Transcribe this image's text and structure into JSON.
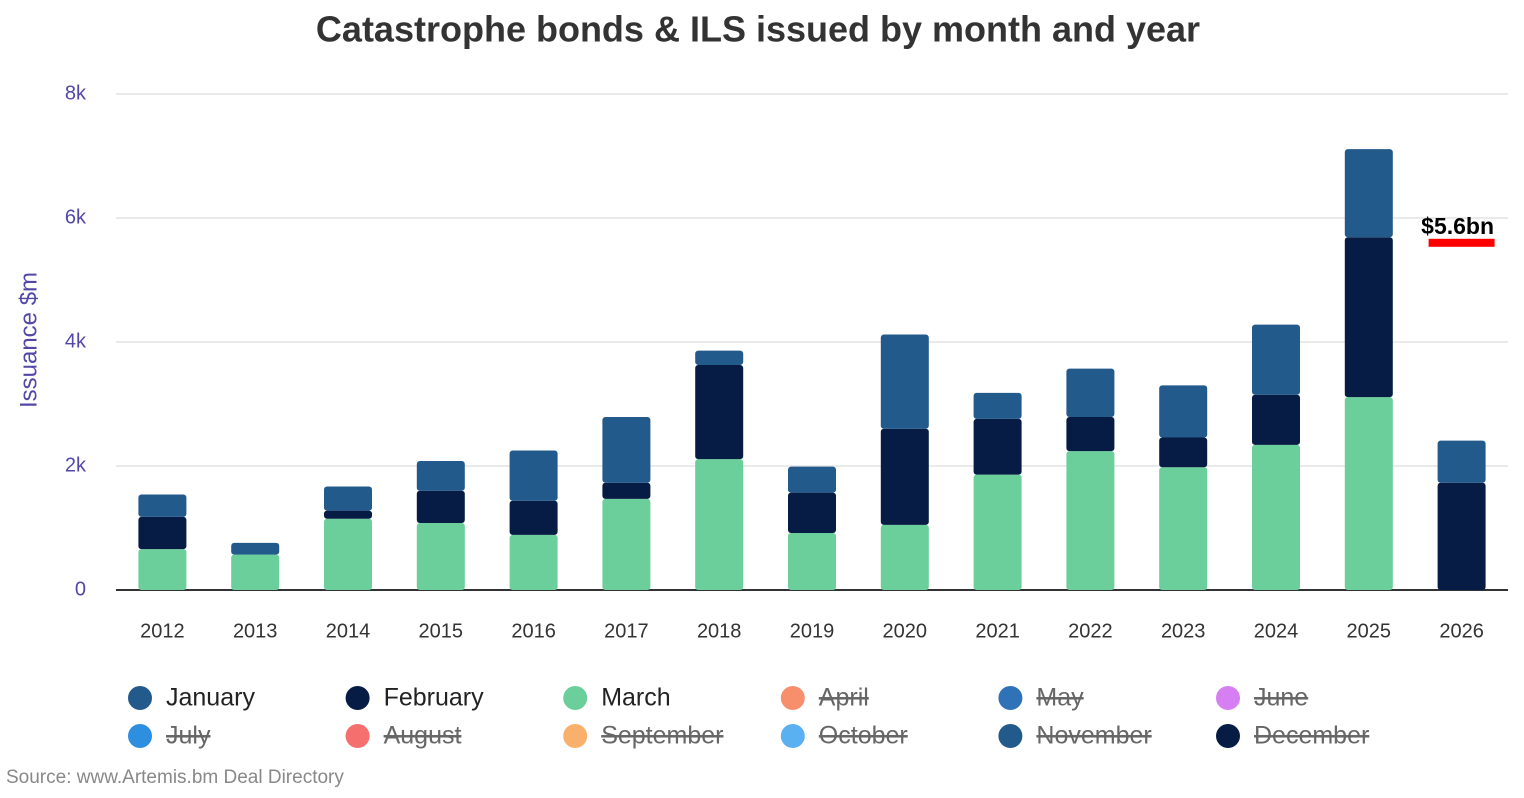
{
  "chart_data": {
    "type": "stacked_bar",
    "title": "Catastrophe bonds & ILS issued by month and year",
    "y_label": "Issuance $m",
    "source": "Source: www.Artemis.bm Deal Directory",
    "categories": [
      "2012",
      "2013",
      "2014",
      "2015",
      "2016",
      "2017",
      "2018",
      "2019",
      "2020",
      "2021",
      "2022",
      "2023",
      "2024",
      "2025",
      "2026"
    ],
    "ylim": [
      0,
      8000
    ],
    "yticks": [
      0,
      {
        "value": 2000,
        "label": "2k"
      },
      {
        "value": 4000,
        "label": "4k"
      },
      {
        "value": 6000,
        "label": "6k"
      },
      {
        "value": 8000,
        "label": "8k"
      }
    ],
    "grid": true,
    "stack_order": [
      "March",
      "February",
      "January"
    ],
    "series": [
      {
        "name": "January",
        "color": "#235a8c",
        "visible": true,
        "values": [
          360,
          190,
          390,
          480,
          810,
          1060,
          230,
          420,
          1520,
          420,
          780,
          840,
          1130,
          1420,
          680
        ]
      },
      {
        "name": "February",
        "color": "#061c45",
        "visible": true,
        "values": [
          520,
          0,
          130,
          520,
          550,
          260,
          1520,
          650,
          1550,
          900,
          550,
          480,
          810,
          2580,
          1730
        ]
      },
      {
        "name": "March",
        "color": "#6bcf9b",
        "visible": true,
        "values": [
          660,
          570,
          1150,
          1080,
          890,
          1470,
          2110,
          920,
          1050,
          1860,
          2240,
          1980,
          2340,
          3110,
          0
        ]
      },
      {
        "name": "April",
        "color": "#f78f6d",
        "visible": false
      },
      {
        "name": "May",
        "color": "#3072b8",
        "visible": false
      },
      {
        "name": "June",
        "color": "#d67ff2",
        "visible": false
      },
      {
        "name": "July",
        "color": "#2e8ee0",
        "visible": false
      },
      {
        "name": "August",
        "color": "#f56f6f",
        "visible": false
      },
      {
        "name": "September",
        "color": "#f9b06b",
        "visible": false
      },
      {
        "name": "October",
        "color": "#5bb0f2",
        "visible": false
      },
      {
        "name": "November",
        "color": "#235a8c",
        "visible": false
      },
      {
        "name": "December",
        "color": "#061c45",
        "visible": false
      }
    ],
    "annotation": {
      "text": "$5.6bn",
      "value": 5600,
      "color": "#ff0000"
    }
  }
}
